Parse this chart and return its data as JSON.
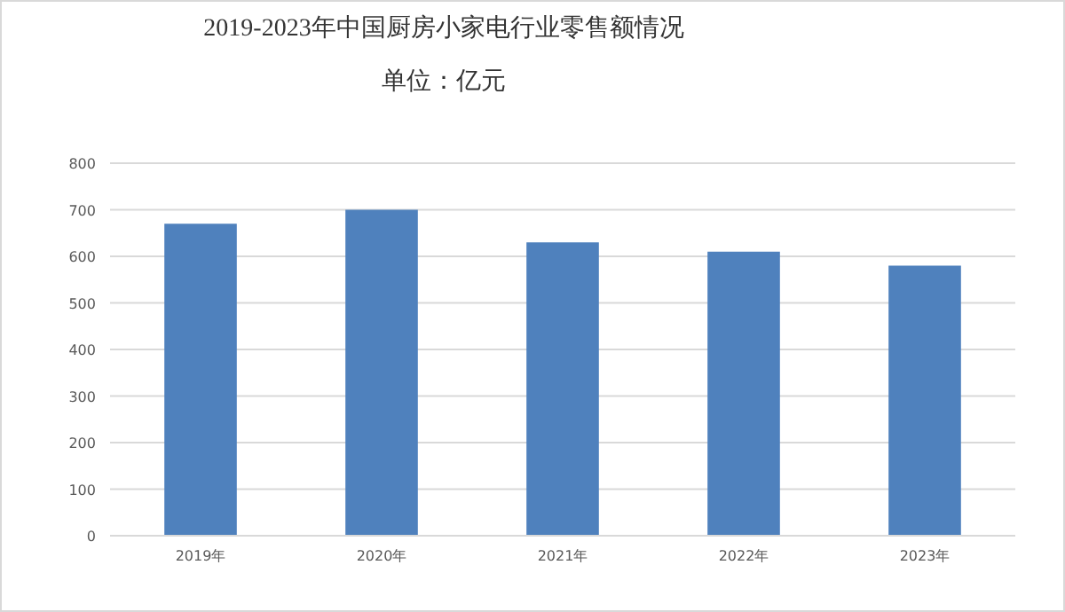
{
  "chart_data": {
    "type": "bar",
    "title": "2019-2023年中国厨房小家电行业零售额情况",
    "subtitle": "单位：亿元",
    "categories": [
      "2019年",
      "2020年",
      "2021年",
      "2022年",
      "2023年"
    ],
    "values": [
      670,
      700,
      630,
      610,
      580
    ],
    "color": "#4f81bd",
    "ylim": [
      0,
      800
    ],
    "yticks": [
      0,
      100,
      200,
      300,
      400,
      500,
      600,
      700,
      800
    ],
    "grid": "y"
  }
}
